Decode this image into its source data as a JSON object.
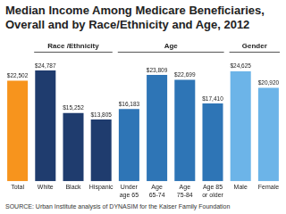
{
  "chart_data": {
    "type": "bar",
    "title": "Median Income Among Medicare Beneficiaries, Overall and by Race/Ethnicity and Age, 2012",
    "source": "SOURCE: Urban Institute analysis of DYNASIM for the Kaiser Family Foundation",
    "categories": [
      [
        "Total"
      ],
      [
        "White"
      ],
      [
        "Black"
      ],
      [
        "Hispanic"
      ],
      [
        "Under",
        "age 65"
      ],
      [
        "Age",
        "65-74"
      ],
      [
        "Age",
        "75-84"
      ],
      [
        "Age 85",
        "or older"
      ],
      [
        "Male"
      ],
      [
        "Female"
      ]
    ],
    "values": [
      22502,
      24787,
      15252,
      13805,
      16183,
      23809,
      22699,
      17410,
      24625,
      20920
    ],
    "value_labels": [
      "$22,502",
      "$24,787",
      "$15,252",
      "$13,805",
      "$16,183",
      "$23,809",
      "$22,699",
      "$17,410",
      "$24,625",
      "$20,920"
    ],
    "colors": [
      "#f7941d",
      "#1f3c6e",
      "#1f3c6e",
      "#1f3c6e",
      "#2e75b6",
      "#2e75b6",
      "#2e75b6",
      "#2e75b6",
      "#6cb4e8",
      "#6cb4e8"
    ],
    "groups": [
      {
        "name": "Race /Ethnicity",
        "first": 1,
        "last": 3
      },
      {
        "name": "Age",
        "first": 4,
        "last": 7
      },
      {
        "name": "Gender",
        "first": 8,
        "last": 9
      }
    ],
    "ylim": [
      0,
      27000
    ],
    "data_labels": true,
    "grid": false,
    "tick_labels": "x"
  }
}
